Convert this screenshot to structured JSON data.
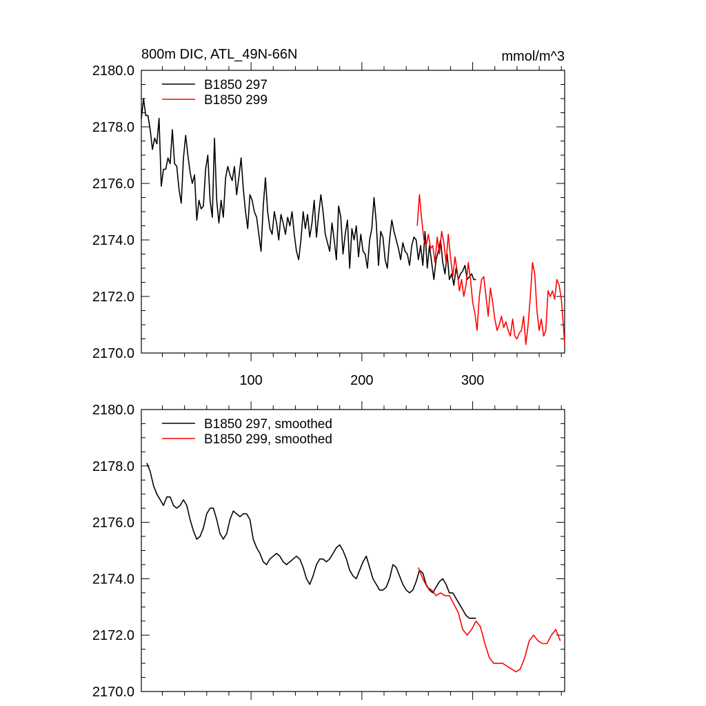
{
  "chart_data": [
    {
      "type": "line",
      "title": "800m DIC, ATL_49N-66N",
      "units": "mmol/m^3",
      "xlabel": "",
      "ylabel": "",
      "xlim": [
        1,
        383
      ],
      "ylim": [
        2170,
        2180
      ],
      "xticks": [
        100,
        200,
        300
      ],
      "yticks": [
        "2170.0",
        "2172.0",
        "2174.0",
        "2176.0",
        "2178.0",
        "2180.0"
      ],
      "grid": false,
      "legend": "top-left",
      "series": [
        {
          "name": "B1850 297",
          "color": "#000000",
          "x": [
            1,
            3,
            5,
            7,
            9,
            11,
            13,
            15,
            17,
            19,
            21,
            23,
            25,
            27,
            29,
            31,
            33,
            35,
            37,
            39,
            41,
            43,
            45,
            47,
            49,
            51,
            53,
            55,
            57,
            59,
            61,
            63,
            65,
            67,
            69,
            71,
            73,
            75,
            77,
            79,
            81,
            83,
            85,
            87,
            89,
            91,
            93,
            95,
            97,
            99,
            101,
            103,
            105,
            107,
            109,
            111,
            113,
            115,
            117,
            119,
            121,
            123,
            125,
            127,
            129,
            131,
            133,
            135,
            137,
            139,
            141,
            143,
            145,
            147,
            149,
            151,
            153,
            155,
            157,
            159,
            161,
            163,
            165,
            167,
            169,
            171,
            173,
            175,
            177,
            179,
            181,
            183,
            185,
            187,
            189,
            191,
            193,
            195,
            197,
            199,
            201,
            203,
            205,
            207,
            209,
            211,
            213,
            215,
            217,
            219,
            221,
            223,
            225,
            227,
            229,
            231,
            233,
            235,
            237,
            239,
            241,
            243,
            245,
            247,
            249,
            251,
            253,
            255,
            257,
            259,
            261,
            263,
            265,
            267,
            269,
            271,
            273,
            275,
            277,
            279,
            281,
            283,
            285,
            287,
            289,
            291,
            293,
            295,
            297,
            299,
            301,
            303
          ],
          "y": [
            2178.3,
            2179.0,
            2178.4,
            2178.4,
            2177.9,
            2177.2,
            2177.6,
            2177.4,
            2178.3,
            2175.9,
            2176.5,
            2176.5,
            2176.9,
            2176.7,
            2177.9,
            2176.7,
            2176.6,
            2175.8,
            2175.3,
            2176.9,
            2177.7,
            2177.0,
            2176.4,
            2176.0,
            2176.3,
            2174.7,
            2175.4,
            2175.1,
            2175.2,
            2176.5,
            2177.0,
            2175.4,
            2174.8,
            2177.6,
            2175.4,
            2174.6,
            2175.4,
            2174.8,
            2176.2,
            2176.6,
            2176.3,
            2176.1,
            2176.6,
            2175.6,
            2176.2,
            2176.9,
            2175.8,
            2175.0,
            2174.4,
            2175.6,
            2175.4,
            2175.0,
            2174.8,
            2174.2,
            2173.6,
            2175.2,
            2176.2,
            2175.0,
            2174.4,
            2174.2,
            2175.0,
            2174.6,
            2174.0,
            2174.9,
            2174.6,
            2174.2,
            2174.8,
            2174.5,
            2175.0,
            2174.2,
            2173.6,
            2173.3,
            2174.0,
            2175.0,
            2174.4,
            2174.9,
            2174.1,
            2174.6,
            2175.4,
            2174.1,
            2174.9,
            2175.6,
            2175.0,
            2174.2,
            2173.9,
            2173.6,
            2174.6,
            2174.0,
            2173.3,
            2175.2,
            2174.8,
            2173.5,
            2174.2,
            2174.7,
            2173.0,
            2174.4,
            2174.0,
            2174.5,
            2173.4,
            2174.2,
            2173.6,
            2173.5,
            2173.0,
            2174.0,
            2174.4,
            2175.5,
            2174.6,
            2173.1,
            2174.3,
            2174.1,
            2173.3,
            2173.0,
            2174.0,
            2174.7,
            2174.3,
            2174.0,
            2173.7,
            2173.3,
            2173.9,
            2173.6,
            2173.5,
            2173.1,
            2173.8,
            2174.1,
            2174.0,
            2173.3,
            2173.8,
            2173.1,
            2174.3,
            2173.0,
            2173.8,
            2173.2,
            2172.6,
            2173.3,
            2173.6,
            2174.0,
            2173.2,
            2172.8,
            2173.5,
            2172.6,
            2172.8,
            2172.4,
            2173.0,
            2172.6,
            2172.8,
            2172.9,
            2173.1,
            2172.6,
            2172.7,
            2172.8,
            2172.6,
            2172.6
          ]
        },
        {
          "name": "B1850 299",
          "color": "#ff0000",
          "x": [
            250,
            252,
            254,
            256,
            258,
            260,
            262,
            264,
            266,
            268,
            270,
            272,
            274,
            276,
            278,
            280,
            282,
            284,
            286,
            288,
            290,
            292,
            294,
            296,
            298,
            300,
            302,
            304,
            306,
            308,
            310,
            312,
            314,
            316,
            318,
            320,
            322,
            324,
            326,
            328,
            330,
            332,
            334,
            336,
            338,
            340,
            342,
            344,
            346,
            348,
            350,
            352,
            354,
            356,
            358,
            360,
            362,
            364,
            366,
            368,
            370,
            372,
            374,
            376,
            378,
            380,
            382,
            383
          ],
          "y": [
            2174.5,
            2175.6,
            2174.7,
            2174.0,
            2173.8,
            2174.2,
            2173.7,
            2173.8,
            2173.2,
            2174.1,
            2173.5,
            2174.3,
            2173.9,
            2173.2,
            2174.2,
            2173.4,
            2172.7,
            2173.4,
            2172.9,
            2172.2,
            2172.6,
            2172.0,
            2172.4,
            2173.2,
            2172.6,
            2171.8,
            2171.4,
            2170.8,
            2172.0,
            2172.6,
            2172.7,
            2172.0,
            2171.3,
            2172.3,
            2171.8,
            2171.2,
            2170.8,
            2171.0,
            2171.3,
            2170.9,
            2171.1,
            2170.8,
            2170.6,
            2171.2,
            2170.6,
            2170.5,
            2170.7,
            2170.8,
            2171.3,
            2170.3,
            2171.0,
            2172.0,
            2173.2,
            2172.8,
            2171.5,
            2170.8,
            2171.2,
            2170.6,
            2170.8,
            2172.2,
            2172.0,
            2172.2,
            2171.9,
            2172.6,
            2172.4,
            2171.9,
            2170.9,
            2170.3
          ]
        }
      ]
    },
    {
      "type": "line",
      "title": "",
      "xlabel": "",
      "ylabel": "",
      "xlim": [
        1,
        383
      ],
      "ylim": [
        2170,
        2180
      ],
      "xticks": [
        100,
        200,
        300
      ],
      "yticks": [
        "2170.0",
        "2172.0",
        "2174.0",
        "2176.0",
        "2178.0",
        "2180.0"
      ],
      "grid": false,
      "legend": "top-left",
      "series": [
        {
          "name": "B1850 297, smoothed",
          "color": "#000000",
          "x": [
            6,
            9,
            12,
            15,
            18,
            21,
            24,
            27,
            30,
            33,
            36,
            39,
            42,
            45,
            48,
            51,
            54,
            57,
            60,
            63,
            66,
            69,
            72,
            75,
            78,
            81,
            84,
            87,
            90,
            93,
            96,
            99,
            102,
            105,
            108,
            111,
            114,
            117,
            120,
            123,
            126,
            129,
            132,
            135,
            138,
            141,
            144,
            147,
            150,
            153,
            156,
            159,
            162,
            165,
            168,
            171,
            174,
            177,
            180,
            183,
            186,
            189,
            192,
            195,
            198,
            201,
            204,
            207,
            210,
            213,
            216,
            219,
            222,
            225,
            228,
            231,
            234,
            237,
            240,
            243,
            246,
            249,
            252,
            255,
            258,
            261,
            264,
            267,
            270,
            273,
            276,
            279,
            282,
            285,
            288,
            291,
            294,
            297,
            300,
            303
          ],
          "y": [
            2178.1,
            2177.8,
            2177.3,
            2177.0,
            2176.8,
            2176.6,
            2176.9,
            2176.9,
            2176.6,
            2176.5,
            2176.6,
            2176.8,
            2176.6,
            2176.1,
            2175.7,
            2175.4,
            2175.5,
            2175.8,
            2176.3,
            2176.5,
            2176.5,
            2176.1,
            2175.6,
            2175.4,
            2175.6,
            2176.1,
            2176.4,
            2176.3,
            2176.2,
            2176.3,
            2176.3,
            2176.1,
            2175.4,
            2175.1,
            2174.9,
            2174.6,
            2174.5,
            2174.7,
            2174.8,
            2174.9,
            2174.8,
            2174.6,
            2174.5,
            2174.6,
            2174.7,
            2174.8,
            2174.7,
            2174.4,
            2174.0,
            2173.8,
            2174.1,
            2174.5,
            2174.7,
            2174.7,
            2174.6,
            2174.7,
            2174.9,
            2175.1,
            2175.2,
            2175.0,
            2174.7,
            2174.3,
            2174.1,
            2174.0,
            2174.3,
            2174.6,
            2174.8,
            2174.4,
            2174.0,
            2173.8,
            2173.6,
            2173.6,
            2173.7,
            2174.0,
            2174.5,
            2174.4,
            2174.1,
            2173.8,
            2173.6,
            2173.5,
            2173.6,
            2173.9,
            2174.3,
            2174.2,
            2173.8,
            2173.6,
            2173.5,
            2173.7,
            2173.9,
            2174.0,
            2173.8,
            2173.5,
            2173.5,
            2173.3,
            2173.1,
            2172.9,
            2172.7,
            2172.6,
            2172.6,
            2172.6
          ]
        },
        {
          "name": "B1850 299, smoothed",
          "color": "#ff0000",
          "x": [
            251,
            255,
            259,
            263,
            267,
            271,
            275,
            279,
            283,
            287,
            291,
            295,
            299,
            303,
            307,
            311,
            315,
            319,
            323,
            327,
            331,
            335,
            339,
            343,
            347,
            351,
            355,
            359,
            363,
            367,
            371,
            375,
            379
          ],
          "y": [
            2174.4,
            2174.0,
            2173.7,
            2173.6,
            2173.4,
            2173.5,
            2173.4,
            2173.4,
            2173.1,
            2172.8,
            2172.2,
            2172.0,
            2172.2,
            2172.5,
            2172.3,
            2171.7,
            2171.2,
            2171.0,
            2171.0,
            2171.0,
            2170.9,
            2170.8,
            2170.7,
            2170.8,
            2171.2,
            2171.8,
            2172.0,
            2171.8,
            2171.7,
            2171.7,
            2172.0,
            2172.2,
            2171.8
          ]
        }
      ]
    }
  ]
}
